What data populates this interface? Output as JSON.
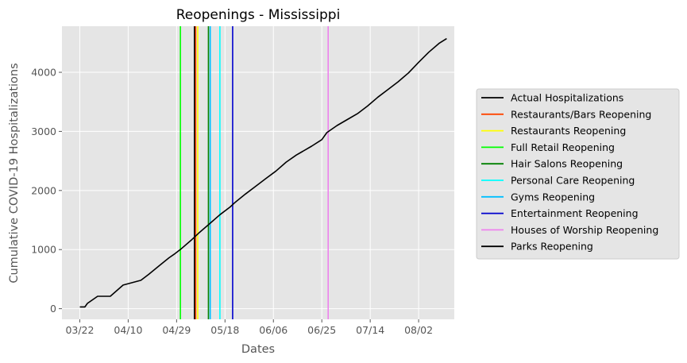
{
  "chart_data": {
    "type": "line",
    "title": "Reopenings - Mississippi",
    "xlabel": "Dates",
    "ylabel": "Cumulative COVID-19 Hospitalizations",
    "x_tick_labels": [
      "03/22",
      "04/10",
      "04/29",
      "05/18",
      "06/06",
      "06/25",
      "07/14",
      "08/02"
    ],
    "x_ticks_day": [
      0,
      19,
      38,
      57,
      76,
      95,
      114,
      133
    ],
    "y_ticks": [
      0,
      1000,
      2000,
      3000,
      4000
    ],
    "xlim_day": [
      -7,
      147
    ],
    "ylim": [
      -180,
      4780
    ],
    "grid": true,
    "legend_position": "right",
    "background": "#e5e5e5",
    "series": [
      {
        "name": "Actual Hospitalizations",
        "color": "#000000",
        "x_day": [
          0,
          2,
          3,
          7,
          12,
          17,
          24,
          27,
          31,
          35,
          37,
          40,
          44,
          47,
          51,
          55,
          59,
          61,
          65,
          69,
          73,
          77,
          81,
          85,
          87,
          91,
          95,
          97,
          101,
          105,
          109,
          113,
          117,
          121,
          125,
          129,
          133,
          137,
          141,
          144
        ],
        "y": [
          30,
          30,
          90,
          210,
          210,
          400,
          480,
          580,
          720,
          860,
          920,
          1020,
          1170,
          1290,
          1440,
          1590,
          1720,
          1800,
          1940,
          2070,
          2200,
          2330,
          2480,
          2600,
          2650,
          2750,
          2860,
          2980,
          3100,
          3200,
          3300,
          3430,
          3580,
          3710,
          3840,
          3990,
          4170,
          4340,
          4490,
          4570
        ]
      }
    ],
    "reopenings": [
      {
        "name": "Restaurants/Bars Reopening",
        "color": "#ff4500",
        "day": 45.5
      },
      {
        "name": "Restaurants Reopening",
        "color": "#ffff00",
        "day": 46.3
      },
      {
        "name": "Full Retail Reopening",
        "color": "#00ff00",
        "day": 39.5
      },
      {
        "name": "Hair Salons Reopening",
        "color": "#008000",
        "day": 50.5
      },
      {
        "name": "Personal Care Reopening",
        "color": "#00ffff",
        "day": 55.0
      },
      {
        "name": "Gyms Reopening",
        "color": "#00bfff",
        "day": 51.2
      },
      {
        "name": "Entertainment Reopening",
        "color": "#0000cd",
        "day": 60.0
      },
      {
        "name": "Houses of Worship Reopening",
        "color": "#ee82ee",
        "day": 97.5
      },
      {
        "name": "Parks Reopening",
        "color": "#000000",
        "day": 45.0
      }
    ],
    "legend": [
      {
        "label": "Actual Hospitalizations",
        "color": "#000000"
      },
      {
        "label": "Restaurants/Bars Reopening",
        "color": "#ff4500"
      },
      {
        "label": "Restaurants Reopening",
        "color": "#ffff00"
      },
      {
        "label": "Full Retail Reopening",
        "color": "#00ff00"
      },
      {
        "label": "Hair Salons Reopening",
        "color": "#008000"
      },
      {
        "label": "Personal Care Reopening",
        "color": "#00ffff"
      },
      {
        "label": "Gyms Reopening",
        "color": "#00bfff"
      },
      {
        "label": "Entertainment Reopening",
        "color": "#0000cd"
      },
      {
        "label": "Houses of Worship Reopening",
        "color": "#ee82ee"
      },
      {
        "label": "Parks Reopening",
        "color": "#000000"
      }
    ]
  }
}
